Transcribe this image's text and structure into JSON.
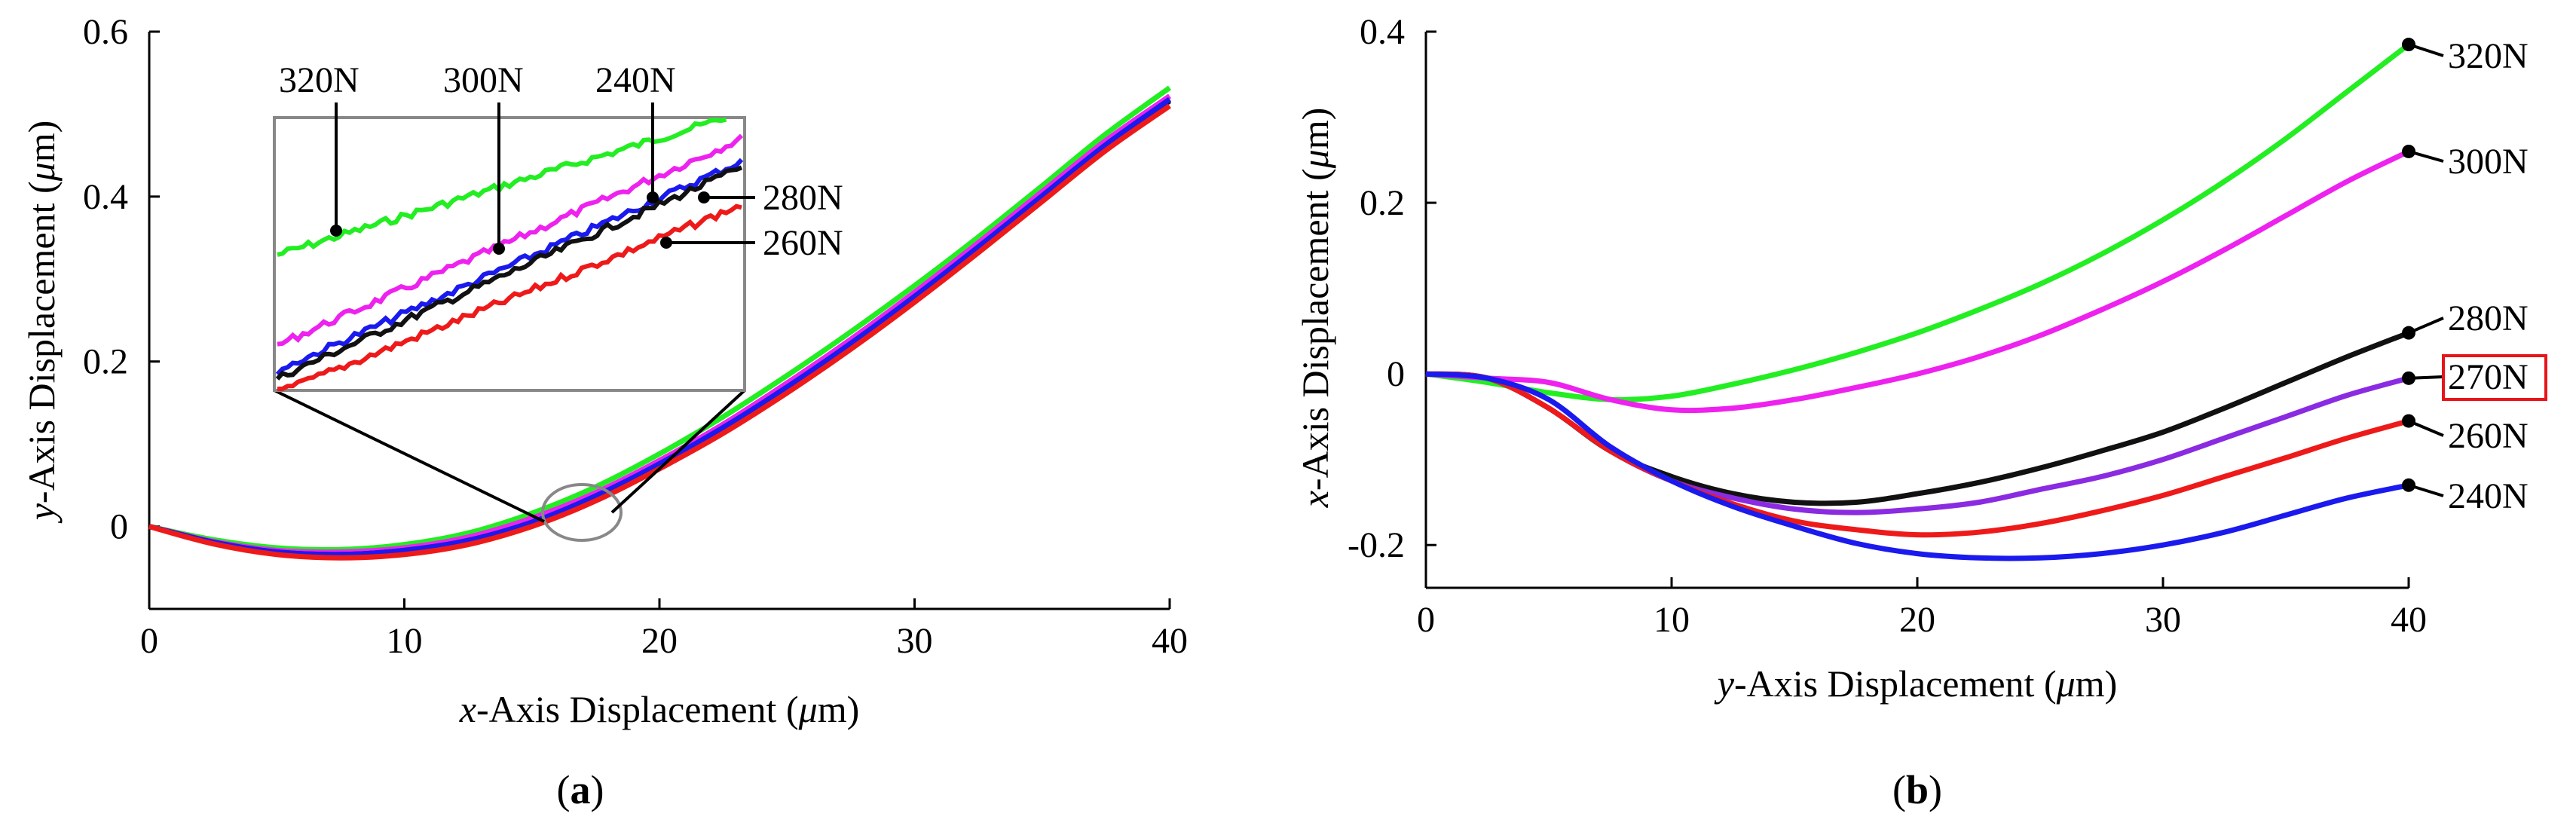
{
  "panels": [
    {
      "id": "a",
      "panel_label_prefix": "(",
      "panel_label_letter": "a",
      "panel_label_suffix": ")",
      "x_title_italic": "x",
      "x_title_rest": "-Axis Displacement (",
      "x_title_unit_italic": "μ",
      "x_title_unit_rest": "m)",
      "y_title_italic": "y",
      "y_title_rest": "-Axis Displacement (",
      "y_title_unit_italic": "μ",
      "y_title_unit_rest": "m)",
      "x_ticks": [
        "0",
        "10",
        "20",
        "30",
        "40"
      ],
      "y_ticks": [
        "0",
        "0.2",
        "0.4",
        "0.6"
      ],
      "inset_labels": [
        "320N",
        "300N",
        "240N",
        "280N",
        "260N"
      ]
    },
    {
      "id": "b",
      "panel_label_prefix": "(",
      "panel_label_letter": "b",
      "panel_label_suffix": ")",
      "x_title_italic": "y",
      "x_title_rest": "-Axis Displacement (",
      "x_title_unit_italic": "μ",
      "x_title_unit_rest": "m)",
      "y_title_italic": "x",
      "y_title_rest": "-Axis Displacement (",
      "y_title_unit_italic": "μ",
      "y_title_unit_rest": "m)",
      "x_ticks": [
        "0",
        "10",
        "20",
        "30",
        "40"
      ],
      "y_ticks": [
        "-0.2",
        "0",
        "0.2",
        "0.4"
      ],
      "highlighted_label": "270N",
      "highlight_color": "#e8141a"
    }
  ],
  "chart_data": [
    {
      "type": "line",
      "panel": "a",
      "title": "",
      "xlabel": "x-Axis Displacement (μm)",
      "ylabel": "y-Axis Displacement (μm)",
      "xlim": [
        0,
        40
      ],
      "ylim": [
        -0.1,
        0.6
      ],
      "grid": false,
      "x": [
        0,
        2.5,
        5,
        7.5,
        10,
        12.5,
        15,
        17.5,
        20,
        22.5,
        25,
        27.5,
        30,
        32.5,
        35,
        37.5,
        40
      ],
      "series": [
        {
          "name": "320N",
          "color": "#22ee22",
          "values": [
            0,
            -0.016,
            -0.026,
            -0.028,
            -0.022,
            -0.008,
            0.016,
            0.048,
            0.088,
            0.133,
            0.183,
            0.236,
            0.292,
            0.351,
            0.413,
            0.476,
            0.532
          ]
        },
        {
          "name": "300N",
          "color": "#ee22ee",
          "values": [
            0,
            -0.018,
            -0.029,
            -0.031,
            -0.026,
            -0.013,
            0.01,
            0.041,
            0.08,
            0.124,
            0.174,
            0.227,
            0.284,
            0.344,
            0.406,
            0.468,
            0.522
          ]
        },
        {
          "name": "280N",
          "color": "#111111",
          "values": [
            0,
            -0.019,
            -0.031,
            -0.034,
            -0.029,
            -0.017,
            0.005,
            0.036,
            0.075,
            0.119,
            0.168,
            0.221,
            0.278,
            0.338,
            0.4,
            0.462,
            0.516
          ]
        },
        {
          "name": "240N",
          "color": "#1a1aee",
          "values": [
            0,
            -0.019,
            -0.031,
            -0.034,
            -0.029,
            -0.017,
            0.005,
            0.037,
            0.076,
            0.12,
            0.169,
            0.222,
            0.279,
            0.339,
            0.401,
            0.463,
            0.518
          ]
        },
        {
          "name": "260N",
          "color": "#ee1a1a",
          "values": [
            0,
            -0.021,
            -0.034,
            -0.038,
            -0.034,
            -0.022,
            0.0,
            0.031,
            0.07,
            0.113,
            0.162,
            0.215,
            0.272,
            0.332,
            0.394,
            0.456,
            0.51
          ]
        }
      ],
      "annotations": "zoom inset around x≈17 μm showing series offsets; labels 320N, 300N, 240N, 280N, 260N"
    },
    {
      "type": "line",
      "panel": "b",
      "title": "",
      "xlabel": "y-Axis Displacement (μm)",
      "ylabel": "x-Axis Displacement (μm)",
      "xlim": [
        0,
        40
      ],
      "ylim": [
        -0.25,
        0.4
      ],
      "grid": false,
      "x": [
        0,
        2.5,
        5,
        7.5,
        10,
        12.5,
        15,
        17.5,
        20,
        22.5,
        25,
        27.5,
        30,
        32.5,
        35,
        37.5,
        40
      ],
      "series": [
        {
          "name": "320N",
          "color": "#22ee22",
          "values": [
            0,
            -0.01,
            -0.022,
            -0.03,
            -0.026,
            -0.012,
            0.005,
            0.025,
            0.048,
            0.075,
            0.105,
            0.14,
            0.18,
            0.225,
            0.275,
            0.33,
            0.385
          ]
        },
        {
          "name": "300N",
          "color": "#ee22ee",
          "values": [
            0,
            -0.005,
            -0.01,
            -0.03,
            -0.042,
            -0.04,
            -0.03,
            -0.016,
            0.0,
            0.02,
            0.045,
            0.075,
            0.108,
            0.145,
            0.185,
            0.225,
            0.26
          ]
        },
        {
          "name": "280N",
          "color": "#111111",
          "values": [
            0,
            -0.005,
            -0.04,
            -0.09,
            -0.12,
            -0.14,
            -0.15,
            -0.15,
            -0.14,
            -0.127,
            -0.11,
            -0.09,
            -0.068,
            -0.04,
            -0.01,
            0.02,
            0.048
          ]
        },
        {
          "name": "270N",
          "color": "#8a2be2",
          "values": [
            0,
            -0.005,
            -0.04,
            -0.09,
            -0.125,
            -0.145,
            -0.158,
            -0.162,
            -0.158,
            -0.15,
            -0.135,
            -0.12,
            -0.1,
            -0.075,
            -0.05,
            -0.025,
            -0.005
          ]
        },
        {
          "name": "260N",
          "color": "#ee1a1a",
          "values": [
            0,
            -0.005,
            -0.04,
            -0.09,
            -0.125,
            -0.152,
            -0.172,
            -0.182,
            -0.188,
            -0.185,
            -0.175,
            -0.16,
            -0.142,
            -0.12,
            -0.098,
            -0.075,
            -0.055
          ]
        },
        {
          "name": "240N",
          "color": "#1a1aee",
          "values": [
            0,
            -0.005,
            -0.03,
            -0.085,
            -0.125,
            -0.155,
            -0.178,
            -0.198,
            -0.21,
            -0.215,
            -0.215,
            -0.21,
            -0.2,
            -0.185,
            -0.165,
            -0.145,
            -0.13
          ]
        }
      ]
    }
  ]
}
